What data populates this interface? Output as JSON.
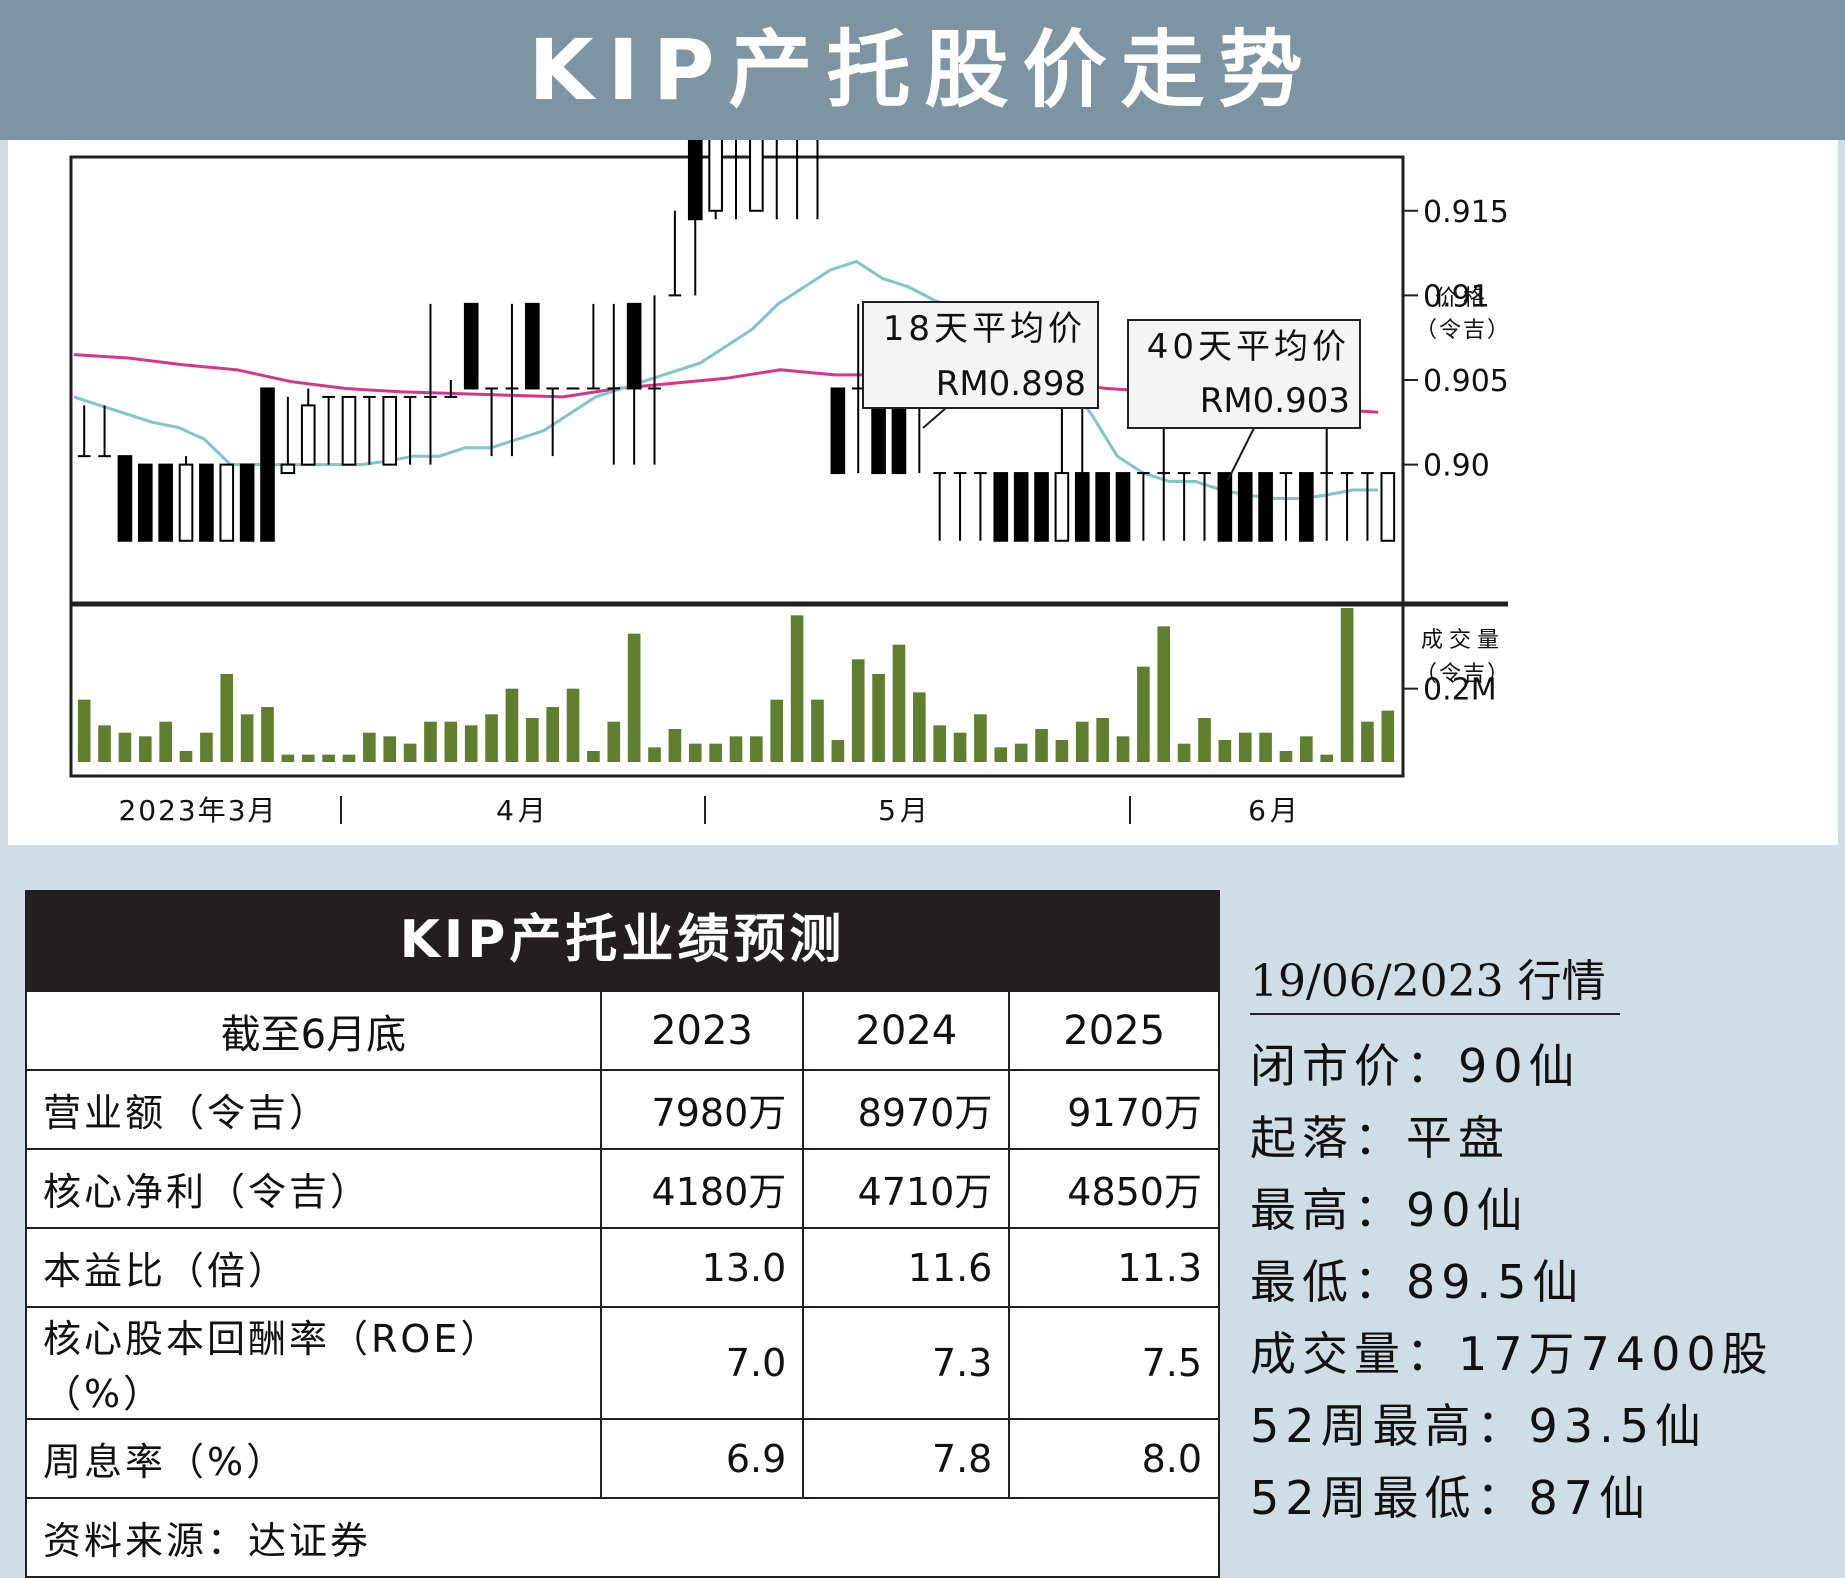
{
  "title": "KIP产托股价走势",
  "chart_data": {
    "type": "candlestick",
    "price_axis": {
      "label": [
        "价格",
        "（令吉）"
      ],
      "ticks": [
        0.915,
        0.91,
        0.905,
        0.9
      ],
      "tick_labels": [
        "0.915",
        "0.91",
        "0.905",
        "0.90"
      ],
      "range": [
        0.892,
        0.918
      ]
    },
    "volume_axis": {
      "label": [
        "成交量",
        "（令吉）"
      ],
      "ticks": [
        0.2
      ],
      "tick_labels": [
        "0.2M"
      ],
      "range": [
        0,
        0.42
      ]
    },
    "x_labels": [
      "2023年3月",
      "4月",
      "5月",
      "6月"
    ],
    "candles": [
      {
        "o": 0.9005,
        "c": 0.9005,
        "h": 0.9035,
        "l": 0.9005,
        "v": 0.17
      },
      {
        "o": 0.9005,
        "c": 0.9005,
        "h": 0.9035,
        "l": 0.9005,
        "v": 0.1
      },
      {
        "o": 0.9005,
        "c": 0.8955,
        "h": 0.9005,
        "l": 0.8955,
        "v": 0.08
      },
      {
        "o": 0.9,
        "c": 0.8955,
        "h": 0.9,
        "l": 0.8955,
        "v": 0.07
      },
      {
        "o": 0.9,
        "c": 0.8955,
        "h": 0.9,
        "l": 0.8955,
        "v": 0.11
      },
      {
        "o": 0.8955,
        "c": 0.9,
        "h": 0.9005,
        "l": 0.8955,
        "v": 0.03
      },
      {
        "o": 0.9,
        "c": 0.8955,
        "h": 0.9,
        "l": 0.8955,
        "v": 0.08
      },
      {
        "o": 0.8955,
        "c": 0.9,
        "h": 0.9,
        "l": 0.8955,
        "v": 0.24
      },
      {
        "o": 0.9,
        "c": 0.8955,
        "h": 0.9,
        "l": 0.8955,
        "v": 0.13
      },
      {
        "o": 0.9045,
        "c": 0.8955,
        "h": 0.9045,
        "l": 0.8955,
        "v": 0.15
      },
      {
        "o": 0.8995,
        "c": 0.9,
        "h": 0.904,
        "l": 0.8995,
        "v": 0.02
      },
      {
        "o": 0.9,
        "c": 0.9035,
        "h": 0.9045,
        "l": 0.9,
        "v": 0.02
      },
      {
        "o": 0.904,
        "c": 0.904,
        "h": 0.904,
        "l": 0.9,
        "v": 0.02
      },
      {
        "o": 0.9,
        "c": 0.904,
        "h": 0.904,
        "l": 0.9,
        "v": 0.02
      },
      {
        "o": 0.904,
        "c": 0.904,
        "h": 0.904,
        "l": 0.9,
        "v": 0.08
      },
      {
        "o": 0.9,
        "c": 0.904,
        "h": 0.904,
        "l": 0.9,
        "v": 0.07
      },
      {
        "o": 0.904,
        "c": 0.904,
        "h": 0.904,
        "l": 0.9,
        "v": 0.05
      },
      {
        "o": 0.904,
        "c": 0.904,
        "h": 0.9095,
        "l": 0.9,
        "v": 0.11
      },
      {
        "o": 0.904,
        "c": 0.904,
        "h": 0.905,
        "l": 0.904,
        "v": 0.11
      },
      {
        "o": 0.9095,
        "c": 0.9045,
        "h": 0.9095,
        "l": 0.9045,
        "v": 0.1
      },
      {
        "o": 0.9045,
        "c": 0.9045,
        "h": 0.9045,
        "l": 0.9005,
        "v": 0.13
      },
      {
        "o": 0.9045,
        "c": 0.9045,
        "h": 0.9095,
        "l": 0.9005,
        "v": 0.2
      },
      {
        "o": 0.9095,
        "c": 0.9045,
        "h": 0.9095,
        "l": 0.9045,
        "v": 0.12
      },
      {
        "o": 0.9045,
        "c": 0.9045,
        "h": 0.9045,
        "l": 0.9005,
        "v": 0.15
      },
      {
        "o": 0.9045,
        "c": 0.9045,
        "h": 0.9045,
        "l": 0.9045,
        "v": 0.2
      },
      {
        "o": 0.9045,
        "c": 0.9045,
        "h": 0.9095,
        "l": 0.9045,
        "v": 0.03
      },
      {
        "o": 0.9045,
        "c": 0.9045,
        "h": 0.9095,
        "l": 0.9,
        "v": 0.11
      },
      {
        "o": 0.9095,
        "c": 0.9045,
        "h": 0.9095,
        "l": 0.9,
        "v": 0.35
      },
      {
        "o": 0.9045,
        "c": 0.9045,
        "h": 0.91,
        "l": 0.9,
        "v": 0.04
      },
      {
        "o": 0.91,
        "c": 0.91,
        "h": 0.915,
        "l": 0.91,
        "v": 0.09
      },
      {
        "o": 0.9195,
        "c": 0.9145,
        "h": 0.9195,
        "l": 0.91,
        "v": 0.05
      },
      {
        "o": 0.915,
        "c": 0.9195,
        "h": 0.9195,
        "l": 0.9145,
        "v": 0.05
      },
      {
        "o": 0.9195,
        "c": 0.9195,
        "h": 0.9195,
        "l": 0.9145,
        "v": 0.07
      },
      {
        "o": 0.915,
        "c": 0.9195,
        "h": 0.9195,
        "l": 0.915,
        "v": 0.07
      },
      {
        "o": 0.9195,
        "c": 0.9195,
        "h": 0.9195,
        "l": 0.9145,
        "v": 0.17
      },
      {
        "o": 0.9195,
        "c": 0.9195,
        "h": 0.9195,
        "l": 0.9145,
        "v": 0.4
      },
      {
        "o": 0.9195,
        "c": 0.9195,
        "h": 0.9195,
        "l": 0.9145,
        "v": 0.17
      },
      {
        "o": 0.9045,
        "c": 0.8995,
        "h": 0.9045,
        "l": 0.8995,
        "v": 0.06
      },
      {
        "o": 0.9045,
        "c": 0.9045,
        "h": 0.9095,
        "l": 0.8995,
        "v": 0.28
      },
      {
        "o": 0.9045,
        "c": 0.8995,
        "h": 0.9095,
        "l": 0.8995,
        "v": 0.24
      },
      {
        "o": 0.9045,
        "c": 0.8995,
        "h": 0.9045,
        "l": 0.8995,
        "v": 0.32
      },
      {
        "o": 0.9045,
        "c": 0.9045,
        "h": 0.9045,
        "l": 0.8995,
        "v": 0.19
      },
      {
        "o": 0.8995,
        "c": 0.8995,
        "h": 0.8995,
        "l": 0.8955,
        "v": 0.1
      },
      {
        "o": 0.8995,
        "c": 0.8995,
        "h": 0.8995,
        "l": 0.8955,
        "v": 0.08
      },
      {
        "o": 0.8995,
        "c": 0.8995,
        "h": 0.8995,
        "l": 0.8955,
        "v": 0.13
      },
      {
        "o": 0.8995,
        "c": 0.8955,
        "h": 0.8995,
        "l": 0.8955,
        "v": 0.04
      },
      {
        "o": 0.8995,
        "c": 0.8955,
        "h": 0.8995,
        "l": 0.8955,
        "v": 0.05
      },
      {
        "o": 0.8995,
        "c": 0.8955,
        "h": 0.8995,
        "l": 0.8955,
        "v": 0.09
      },
      {
        "o": 0.8955,
        "c": 0.8995,
        "h": 0.9045,
        "l": 0.8955,
        "v": 0.06
      },
      {
        "o": 0.8995,
        "c": 0.8955,
        "h": 0.9045,
        "l": 0.8955,
        "v": 0.11
      },
      {
        "o": 0.8995,
        "c": 0.8955,
        "h": 0.8995,
        "l": 0.8955,
        "v": 0.12
      },
      {
        "o": 0.8995,
        "c": 0.8955,
        "h": 0.8995,
        "l": 0.8955,
        "v": 0.07
      },
      {
        "o": 0.8995,
        "c": 0.8995,
        "h": 0.8995,
        "l": 0.8955,
        "v": 0.26
      },
      {
        "o": 0.8995,
        "c": 0.8995,
        "h": 0.9045,
        "l": 0.8955,
        "v": 0.37
      },
      {
        "o": 0.8995,
        "c": 0.8995,
        "h": 0.8995,
        "l": 0.8955,
        "v": 0.05
      },
      {
        "o": 0.8995,
        "c": 0.8995,
        "h": 0.8995,
        "l": 0.8955,
        "v": 0.12
      },
      {
        "o": 0.8995,
        "c": 0.8955,
        "h": 0.8995,
        "l": 0.8955,
        "v": 0.06
      },
      {
        "o": 0.8995,
        "c": 0.8955,
        "h": 0.8995,
        "l": 0.8955,
        "v": 0.08
      },
      {
        "o": 0.8995,
        "c": 0.8955,
        "h": 0.8995,
        "l": 0.8955,
        "v": 0.08
      },
      {
        "o": 0.8995,
        "c": 0.8995,
        "h": 0.8995,
        "l": 0.8955,
        "v": 0.03
      },
      {
        "o": 0.8995,
        "c": 0.8955,
        "h": 0.8995,
        "l": 0.8955,
        "v": 0.07
      },
      {
        "o": 0.8995,
        "c": 0.8995,
        "h": 0.9045,
        "l": 0.8955,
        "v": 0.02
      },
      {
        "o": 0.8995,
        "c": 0.8995,
        "h": 0.8995,
        "l": 0.8955,
        "v": 0.42
      },
      {
        "o": 0.8995,
        "c": 0.8995,
        "h": 0.8995,
        "l": 0.8955,
        "v": 0.11
      },
      {
        "o": 0.8955,
        "c": 0.8995,
        "h": 0.8995,
        "l": 0.8955,
        "v": 0.14
      }
    ],
    "ma18": [
      0.904,
      0.9035,
      0.903,
      0.9025,
      0.9022,
      0.9015,
      0.9,
      0.9,
      0.9,
      0.9,
      0.9,
      0.9,
      0.9002,
      0.9005,
      0.9005,
      0.901,
      0.901,
      0.9015,
      0.902,
      0.903,
      0.904,
      0.9045,
      0.905,
      0.9055,
      0.906,
      0.907,
      0.908,
      0.9095,
      0.9105,
      0.9115,
      0.912,
      0.911,
      0.9105,
      0.9097,
      0.9092,
      0.909,
      0.9085,
      0.907,
      0.905,
      0.903,
      0.9005,
      0.8995,
      0.899,
      0.899,
      0.8985,
      0.8982,
      0.898,
      0.898,
      0.8982,
      0.8985,
      0.8985
    ],
    "ma40": [
      0.9065,
      0.9063,
      0.9059,
      0.9056,
      0.9049,
      0.9045,
      0.9043,
      0.9042,
      0.9041,
      0.904,
      0.9045,
      0.9048,
      0.9051,
      0.9056,
      0.9053,
      0.9053,
      0.9052,
      0.9051,
      0.9049,
      0.9045,
      0.9043,
      0.9039,
      0.9036,
      0.9033,
      0.9031
    ],
    "ma18_label": [
      "18天平均价",
      "RM0.898"
    ],
    "ma40_label": [
      "40天平均价",
      "RM0.903"
    ],
    "colors": {
      "ma18": "#7ec5cc",
      "ma40": "#d6358a",
      "volume": "#5f7f2f",
      "candle": "#000000",
      "header": "#7d95a3",
      "background": "#cfdde6"
    }
  },
  "forecast": {
    "title": "KIP产托业绩预测",
    "header": [
      "截至6月底",
      "2023",
      "2024",
      "2025"
    ],
    "rows": [
      {
        "label": "营业额（令吉）",
        "values": [
          "7980万",
          "8970万",
          "9170万"
        ]
      },
      {
        "label": "核心净利（令吉）",
        "values": [
          "4180万",
          "4710万",
          "4850万"
        ]
      },
      {
        "label": "本益比（倍）",
        "values": [
          "13.0",
          "11.6",
          "11.3"
        ]
      },
      {
        "label": "核心股本回酬率（ROE）（%）",
        "values": [
          "7.0",
          "7.3",
          "7.5"
        ]
      },
      {
        "label": "周息率（%）",
        "values": [
          "6.9",
          "7.8",
          "8.0"
        ]
      }
    ],
    "source": "资料来源：达证券"
  },
  "quote": {
    "date": "19/06/2023 行情",
    "close": "闭市价：90仙",
    "change": "起落：平盘",
    "high": "最高：90仙",
    "low": "最低：89.5仙",
    "volume": "成交量：17万7400股",
    "high52": "52周最高：93.5仙",
    "low52": "52周最低：87仙"
  }
}
